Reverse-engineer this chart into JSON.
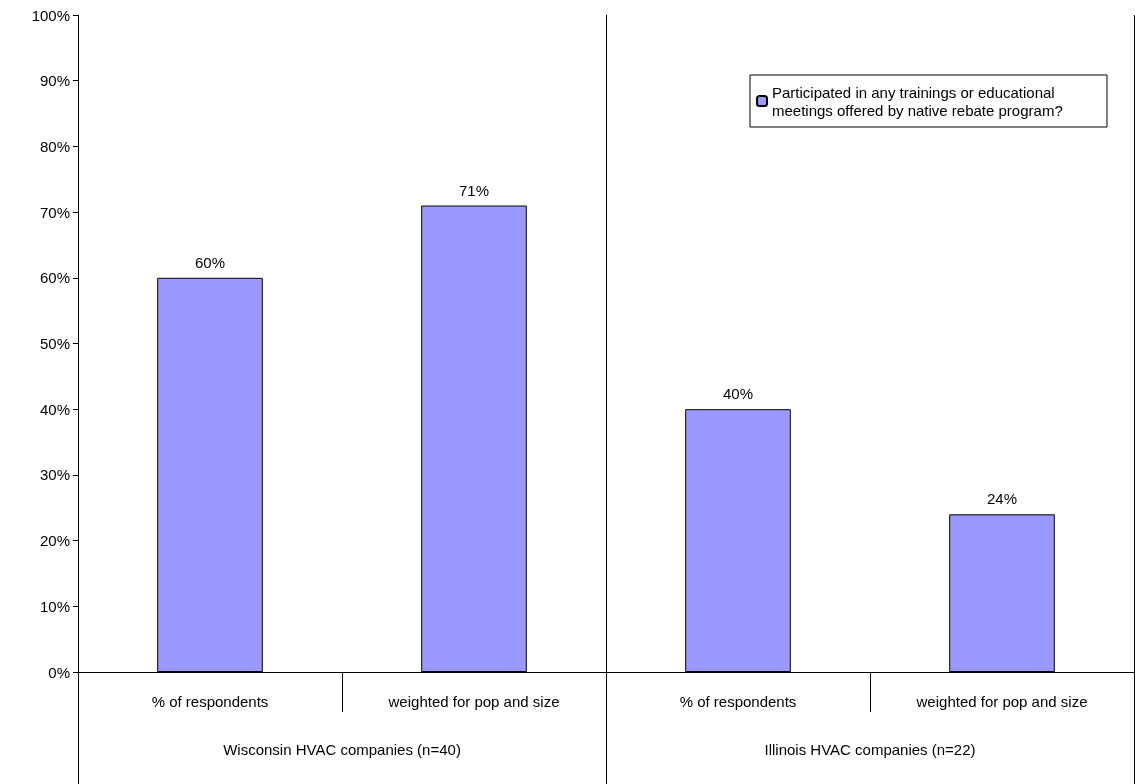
{
  "chart_data": {
    "type": "bar",
    "categories": [
      "% of respondents",
      "weighted for pop and size",
      "% of respondents",
      "weighted for pop and size"
    ],
    "series": [
      {
        "name": "Participated in any trainings or educational meetings offered by native rebate program?",
        "color": "#9999ff",
        "values": [
          60,
          71,
          40,
          24
        ],
        "value_labels": [
          "60%",
          "71%",
          "40%",
          "24%"
        ]
      }
    ],
    "annotations": [
      "Wisconsin HVAC companies (n=40)",
      "Illinois HVAC companies (n=22)"
    ],
    "ylim": [
      0,
      100
    ],
    "yticks": [
      {
        "value": 0,
        "label": "0%"
      },
      {
        "value": 10,
        "label": "10%"
      },
      {
        "value": 20,
        "label": "20%"
      },
      {
        "value": 30,
        "label": "30%"
      },
      {
        "value": 40,
        "label": "40%"
      },
      {
        "value": 50,
        "label": "50%"
      },
      {
        "value": 60,
        "label": "60%"
      },
      {
        "value": 70,
        "label": "70%"
      },
      {
        "value": 80,
        "label": "80%"
      },
      {
        "value": 90,
        "label": "90%"
      },
      {
        "value": 100,
        "label": "100%"
      }
    ],
    "grid": false,
    "legend": "top right"
  }
}
